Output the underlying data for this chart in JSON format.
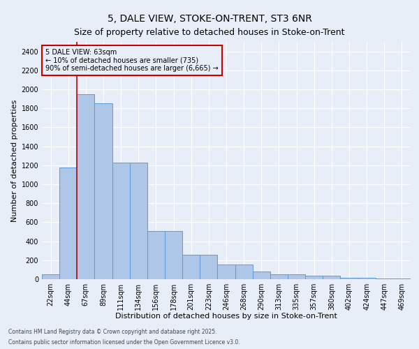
{
  "title1": "5, DALE VIEW, STOKE-ON-TRENT, ST3 6NR",
  "title2": "Size of property relative to detached houses in Stoke-on-Trent",
  "xlabel": "Distribution of detached houses by size in Stoke-on-Trent",
  "ylabel": "Number of detached properties",
  "categories": [
    "22sqm",
    "44sqm",
    "67sqm",
    "89sqm",
    "111sqm",
    "134sqm",
    "156sqm",
    "178sqm",
    "201sqm",
    "223sqm",
    "246sqm",
    "268sqm",
    "290sqm",
    "313sqm",
    "335sqm",
    "357sqm",
    "380sqm",
    "402sqm",
    "424sqm",
    "447sqm",
    "469sqm"
  ],
  "values": [
    50,
    1175,
    1950,
    1850,
    1225,
    1225,
    510,
    510,
    260,
    260,
    155,
    155,
    80,
    50,
    50,
    35,
    35,
    15,
    15,
    10,
    10
  ],
  "bar_color": "#aec6e8",
  "bar_edge_color": "#5b9bd5",
  "bg_color": "#e8eef7",
  "grid_color": "#ffffff",
  "annotation_box_color": "#cc0000",
  "annotation_text": "5 DALE VIEW: 63sqm\n← 10% of detached houses are smaller (735)\n90% of semi-detached houses are larger (6,665) →",
  "vline_x": 1.5,
  "vline_color": "#cc0000",
  "footnote1": "Contains HM Land Registry data © Crown copyright and database right 2025.",
  "footnote2": "Contains public sector information licensed under the Open Government Licence v3.0.",
  "ylim": [
    0,
    2500
  ],
  "yticks": [
    0,
    200,
    400,
    600,
    800,
    1000,
    1200,
    1400,
    1600,
    1800,
    2000,
    2200,
    2400
  ],
  "title_fontsize": 10,
  "subtitle_fontsize": 9,
  "label_fontsize": 8,
  "tick_fontsize": 7,
  "annot_fontsize": 7
}
